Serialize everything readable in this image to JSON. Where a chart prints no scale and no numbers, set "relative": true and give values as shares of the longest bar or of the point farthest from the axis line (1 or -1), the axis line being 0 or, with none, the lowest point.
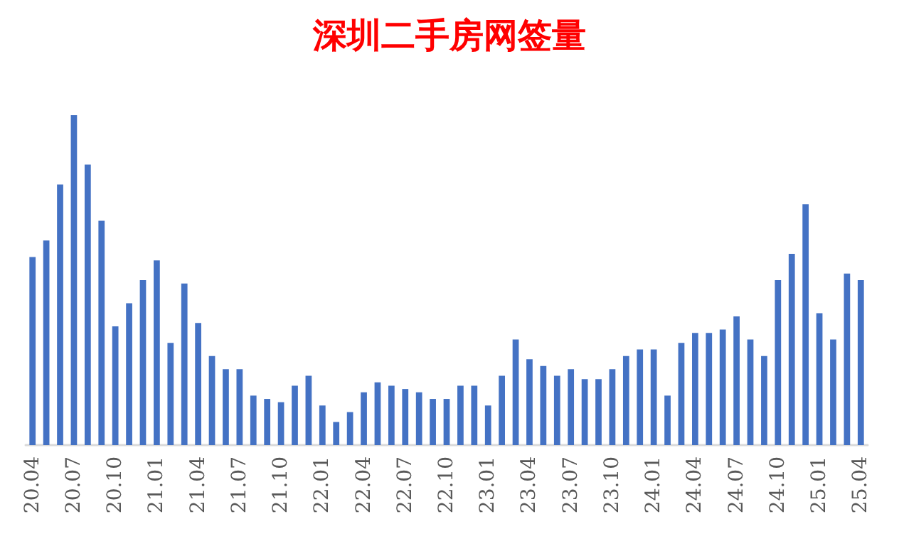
{
  "chart_data": {
    "type": "bar",
    "title": "深圳二手房网签量",
    "relative": true,
    "color": "#4472c4",
    "categories": [
      "20.04",
      null,
      null,
      "20.07",
      null,
      null,
      "20.10",
      null,
      null,
      "21.01",
      null,
      null,
      "21.04",
      null,
      null,
      "21.07",
      null,
      null,
      "21.10",
      null,
      null,
      "22.01",
      null,
      null,
      "22.04",
      null,
      null,
      "22.07",
      null,
      null,
      "22.10",
      null,
      null,
      "23.01",
      null,
      null,
      "23.04",
      null,
      null,
      "23.07",
      null,
      null,
      "23.10",
      null,
      null,
      "24.01",
      null,
      null,
      "24.04",
      null,
      null,
      "24.07",
      null,
      null,
      "24.10",
      null,
      null,
      "25.01",
      null,
      null,
      "25.04"
    ],
    "values": [
      0.57,
      0.62,
      0.79,
      1,
      0.85,
      0.68,
      0.36,
      0.43,
      0.5,
      0.56,
      0.31,
      0.49,
      0.37,
      0.27,
      0.23,
      0.23,
      0.15,
      0.14,
      0.13,
      0.18,
      0.21,
      0.12,
      0.07,
      0.1,
      0.16,
      0.19,
      0.18,
      0.17,
      0.16,
      0.14,
      0.14,
      0.18,
      0.18,
      0.12,
      0.21,
      0.32,
      0.26,
      0.24,
      0.21,
      0.23,
      0.2,
      0.2,
      0.23,
      0.27,
      0.29,
      0.29,
      0.15,
      0.31,
      0.34,
      0.34,
      0.35,
      0.39,
      0.32,
      0.27,
      0.5,
      0.58,
      0.73,
      0.4,
      0.32,
      0.52,
      0.5
    ]
  }
}
